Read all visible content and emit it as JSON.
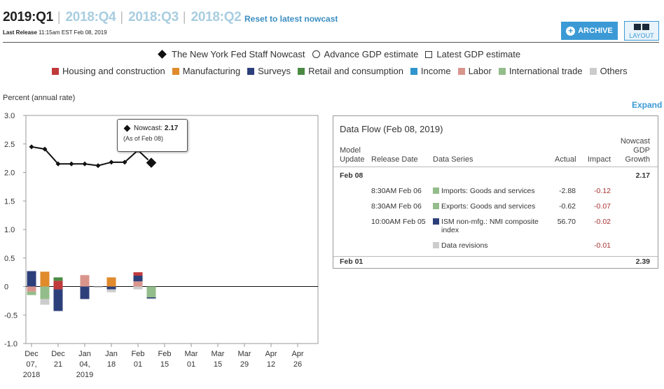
{
  "header": {
    "current_quarter": "2019:Q1",
    "past_quarters": [
      "2018:Q4",
      "2018:Q3",
      "2018:Q2"
    ],
    "reset_link": "Reset to latest nowcast",
    "last_release_label": "Last Release",
    "last_release_value": "11:15am EST Feb 08, 2019",
    "archive_button": "ARCHIVE",
    "layout_button": "LAYOUT"
  },
  "legend_markers": [
    {
      "icon": "diamond-icon",
      "label": "The New York Fed Staff Nowcast"
    },
    {
      "icon": "circle-icon",
      "label": "Advance GDP estimate"
    },
    {
      "icon": "square-icon",
      "label": "Latest GDP estimate"
    }
  ],
  "legend_categories": [
    {
      "label": "Housing and construction",
      "color": "#c0393b"
    },
    {
      "label": "Manufacturing",
      "color": "#e08a2c"
    },
    {
      "label": "Surveys",
      "color": "#2d3f7a"
    },
    {
      "label": "Retail and consumption",
      "color": "#4a8a43"
    },
    {
      "label": "Income",
      "color": "#2f95cc"
    },
    {
      "label": "Labor",
      "color": "#d9958c"
    },
    {
      "label": "International trade",
      "color": "#93bd8a"
    },
    {
      "label": "Others",
      "color": "#cccccc"
    }
  ],
  "expand_link": "Expand",
  "tooltip": {
    "label": "Nowcast:",
    "value": "2.17",
    "date": "(As of Feb 08)"
  },
  "chart_data": {
    "type": "line+stacked-bar",
    "ylabel": "Percent (annual rate)",
    "ylim": [
      -1.0,
      3.0
    ],
    "yticks": [
      "3.0",
      "2.5",
      "2.0",
      "1.5",
      "1.0",
      "0.5",
      "0",
      "-0.5",
      "-1.0"
    ],
    "xticks": [
      {
        "l1": "Dec",
        "l2": "07,",
        "l3": "2018"
      },
      {
        "l1": "Dec",
        "l2": "21",
        "l3": ""
      },
      {
        "l1": "Jan",
        "l2": "04,",
        "l3": "2019"
      },
      {
        "l1": "Jan",
        "l2": "18",
        "l3": ""
      },
      {
        "l1": "Feb",
        "l2": "01",
        "l3": ""
      },
      {
        "l1": "Feb",
        "l2": "15",
        "l3": ""
      },
      {
        "l1": "Mar",
        "l2": "01",
        "l3": ""
      },
      {
        "l1": "Mar",
        "l2": "15",
        "l3": ""
      },
      {
        "l1": "Mar",
        "l2": "29",
        "l3": ""
      },
      {
        "l1": "Apr",
        "l2": "12",
        "l3": ""
      },
      {
        "l1": "Apr",
        "l2": "26",
        "l3": ""
      }
    ],
    "nowcast_line": {
      "name": "The New York Fed Staff Nowcast",
      "x": [
        "2018-12-07",
        "2018-12-14",
        "2018-12-21",
        "2018-12-28",
        "2019-01-04",
        "2019-01-11",
        "2019-01-18",
        "2019-01-25",
        "2019-02-01",
        "2019-02-08"
      ],
      "y": [
        2.45,
        2.41,
        2.15,
        2.15,
        2.15,
        2.12,
        2.18,
        2.18,
        2.39,
        2.17
      ]
    },
    "impact_bars": [
      {
        "x": "2018-12-07",
        "segments": [
          {
            "cat": "Surveys",
            "value": 0.27
          },
          {
            "cat": "Labor",
            "value": -0.09
          },
          {
            "cat": "International trade",
            "value": -0.06
          }
        ]
      },
      {
        "x": "2018-12-14",
        "segments": [
          {
            "cat": "Manufacturing",
            "value": 0.26
          },
          {
            "cat": "International trade",
            "value": -0.22
          },
          {
            "cat": "Others",
            "value": -0.1
          }
        ]
      },
      {
        "x": "2018-12-21",
        "segments": [
          {
            "cat": "Housing and construction",
            "value": 0.1
          },
          {
            "cat": "Retail and consumption",
            "value": 0.06
          },
          {
            "cat": "Housing and construction",
            "value": -0.05
          },
          {
            "cat": "Surveys",
            "value": -0.38
          }
        ]
      },
      {
        "x": "2019-01-04",
        "segments": [
          {
            "cat": "Labor",
            "value": 0.2
          },
          {
            "cat": "Surveys",
            "value": -0.22
          }
        ]
      },
      {
        "x": "2019-01-11",
        "segments": [
          {
            "cat": "Others",
            "value": -0.02
          }
        ]
      },
      {
        "x": "2019-01-18",
        "segments": [
          {
            "cat": "Manufacturing",
            "value": 0.16
          },
          {
            "cat": "Surveys",
            "value": -0.05
          },
          {
            "cat": "Others",
            "value": -0.05
          }
        ]
      },
      {
        "x": "2019-02-01",
        "segments": [
          {
            "cat": "Labor",
            "value": 0.09
          },
          {
            "cat": "Surveys",
            "value": 0.1
          },
          {
            "cat": "Housing and construction",
            "value": 0.06
          },
          {
            "cat": "Others",
            "value": -0.05
          }
        ]
      },
      {
        "x": "2019-02-08",
        "segments": [
          {
            "cat": "International trade",
            "value": -0.19
          },
          {
            "cat": "Surveys",
            "value": -0.02
          },
          {
            "cat": "Others",
            "value": -0.01
          }
        ]
      }
    ]
  },
  "data_flow": {
    "title": "Data Flow (Feb 08, 2019)",
    "headers": {
      "model_update": "Model\nUpdate",
      "release_date": "Release Date",
      "data_series": "Data Series",
      "actual": "Actual",
      "impact": "Impact",
      "nowcast": "Nowcast\nGDP\nGrowth"
    },
    "updates": [
      {
        "date": "Feb 08",
        "nowcast": "2.17",
        "rows": [
          {
            "release": "8:30AM Feb 06",
            "series": "Imports: Goods and services",
            "color": "#93bd8a",
            "actual": "-2.88",
            "impact": "-0.12"
          },
          {
            "release": "8:30AM Feb 06",
            "series": "Exports: Goods and services",
            "color": "#93bd8a",
            "actual": "-0.62",
            "impact": "-0.07"
          },
          {
            "release": "10:00AM Feb 05",
            "series": "ISM non-mfg.: NMI composite\nindex",
            "color": "#2d3f7a",
            "actual": "56.70",
            "impact": "-0.02"
          },
          {
            "release": "",
            "series": "Data revisions",
            "color": "#cccccc",
            "actual": "",
            "impact": "-0.01"
          }
        ]
      },
      {
        "date": "Feb 01",
        "nowcast": "2.39",
        "rows": []
      }
    ]
  }
}
